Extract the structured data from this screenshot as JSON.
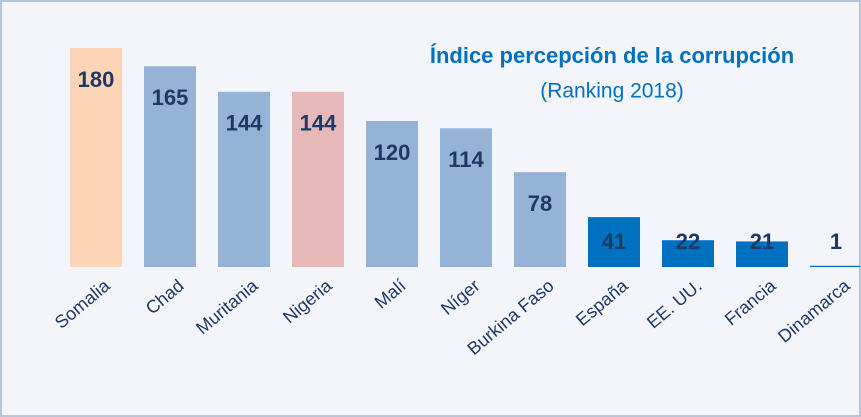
{
  "chart_data": {
    "type": "bar",
    "title": "Índice percepción de la corrupción",
    "subtitle": "(Ranking 2018)",
    "categories": [
      "Somalia",
      "Chad",
      "Muritania",
      "Nigeria",
      "Malí",
      "Níger",
      "Burkina Faso",
      "España",
      "EE. UU.",
      "Francia",
      "Dinamarca"
    ],
    "values": [
      180,
      165,
      144,
      144,
      120,
      114,
      78,
      41,
      22,
      21,
      1
    ],
    "colors": [
      "#fbd5b5",
      "#95b3d7",
      "#95b3d7",
      "#e6b9b8",
      "#95b3d7",
      "#95b3d7",
      "#95b3d7",
      "#0070c0",
      "#0070c0",
      "#0070c0",
      "#0070c0"
    ],
    "ylim": [
      0,
      180
    ]
  }
}
